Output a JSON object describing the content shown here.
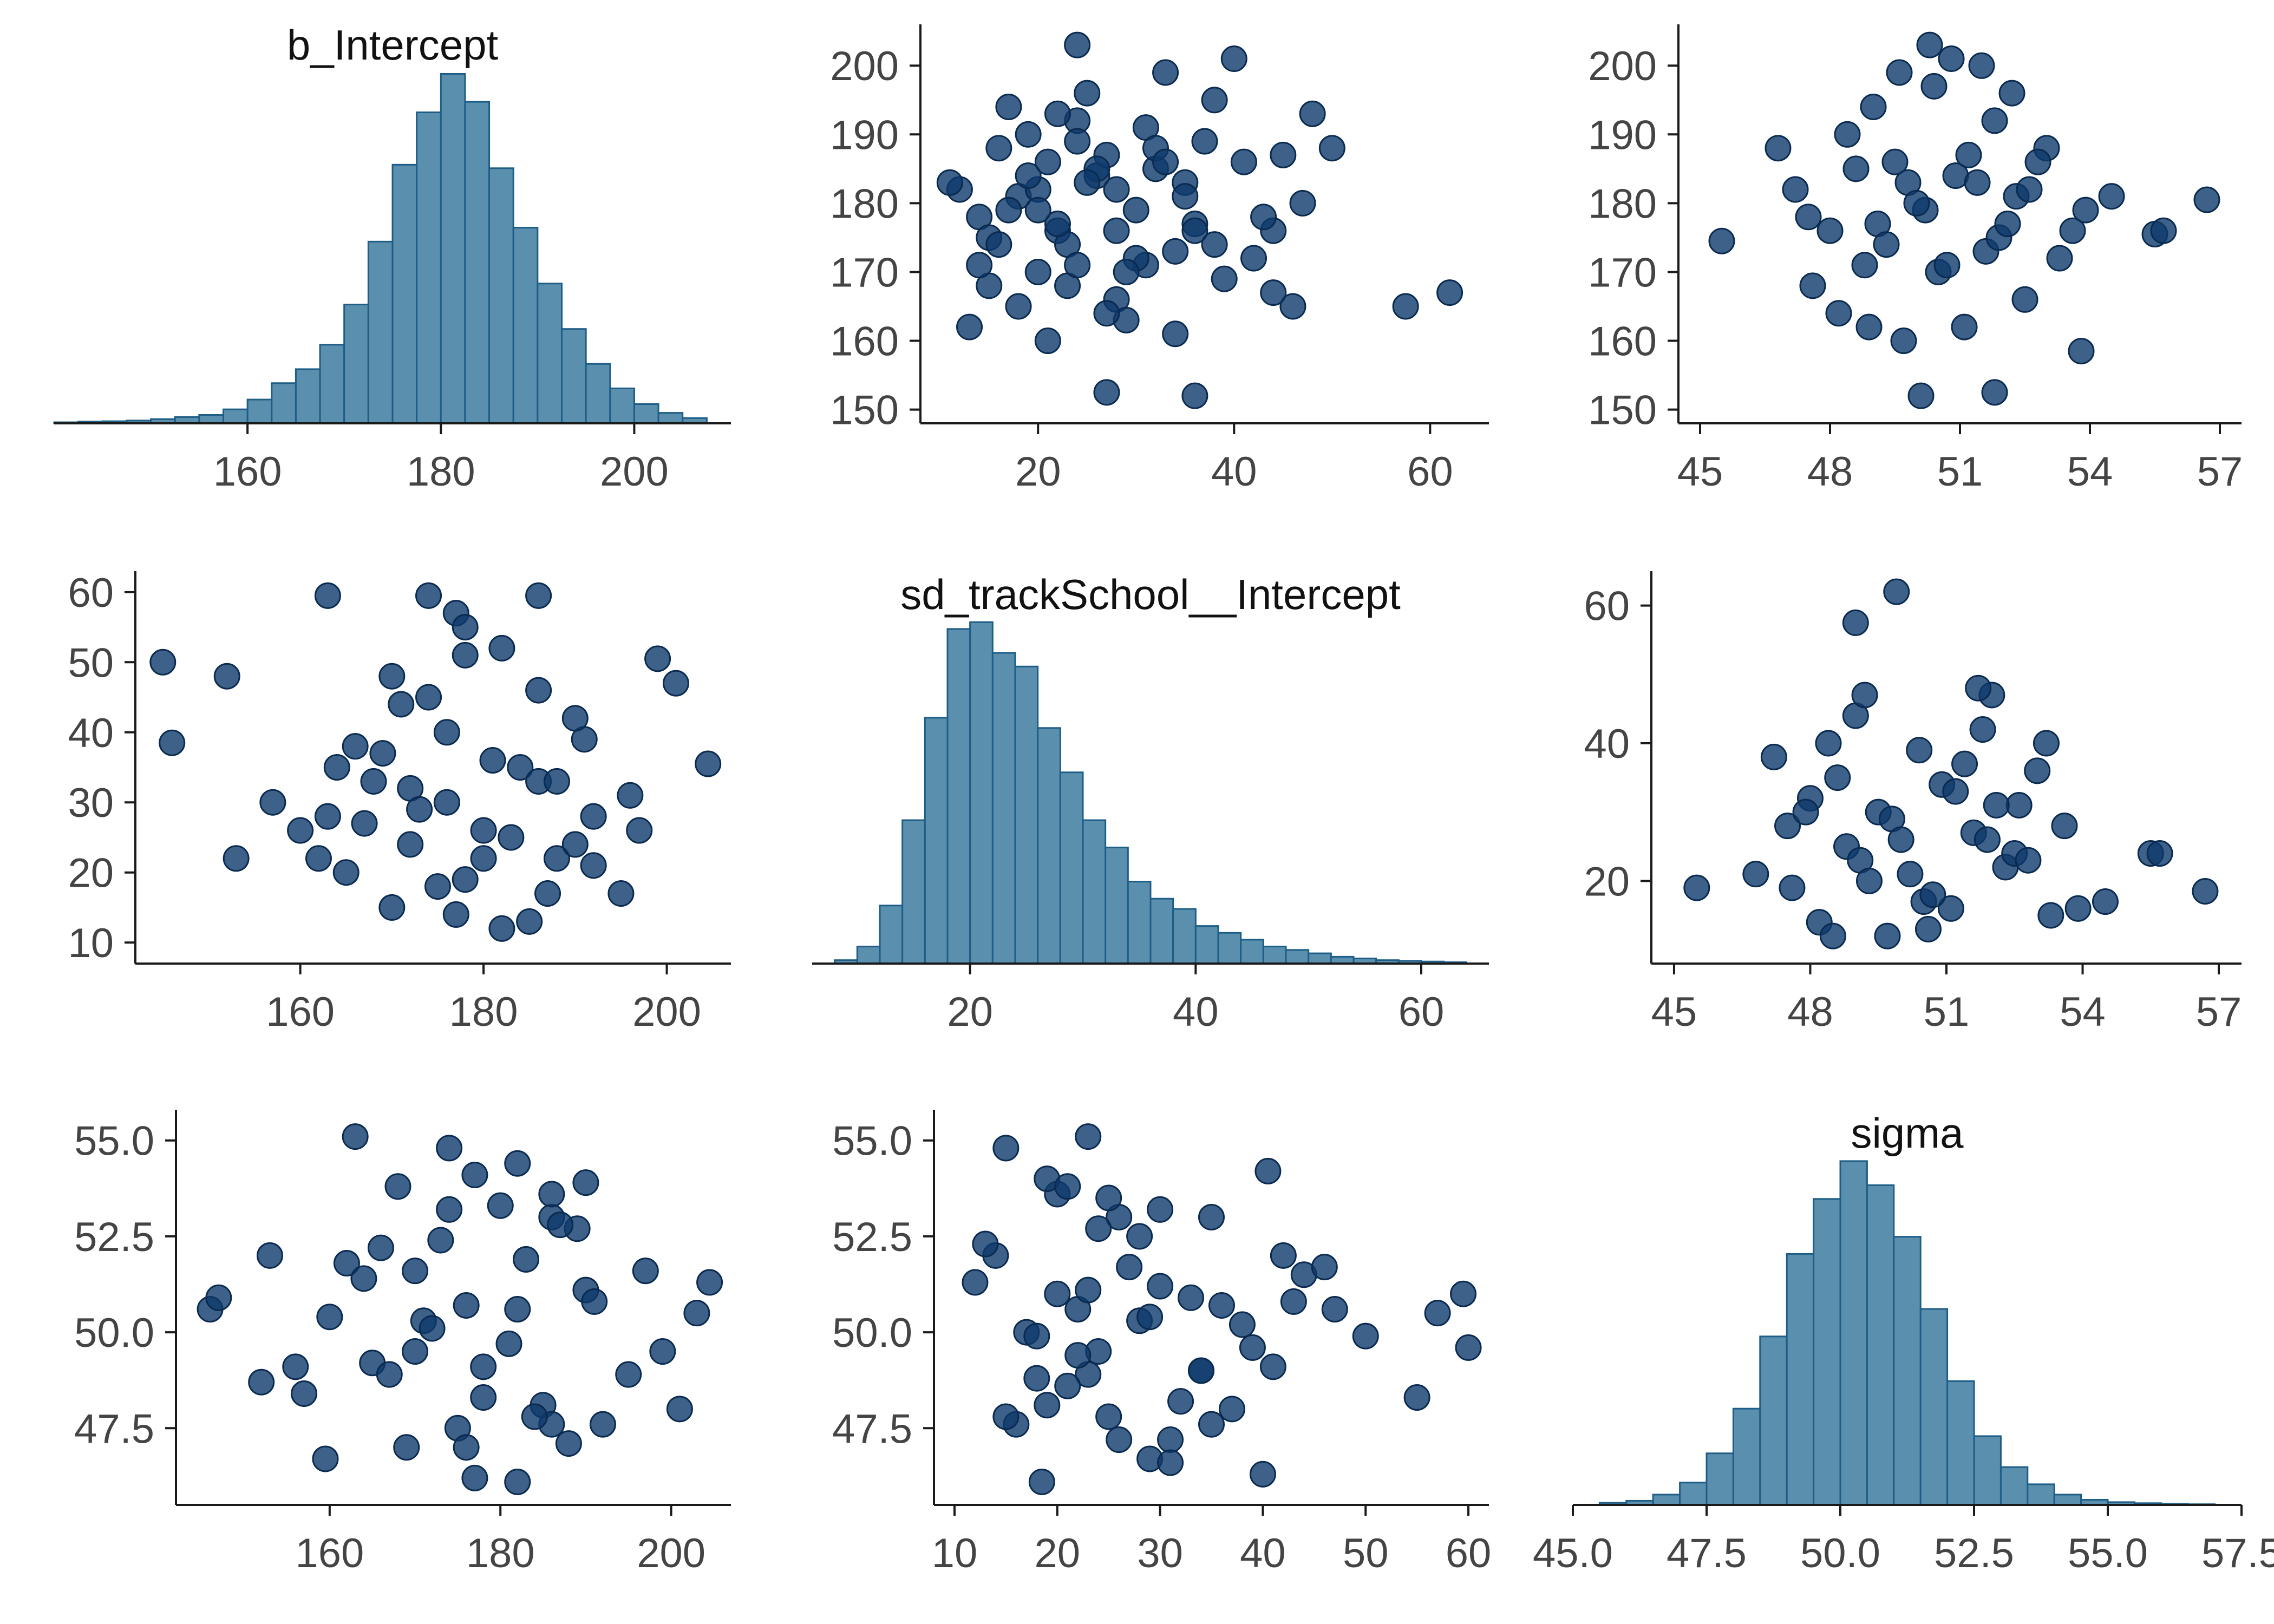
{
  "colors": {
    "bar_fill": "#5b8fae",
    "bar_edge": "#1d5d86",
    "point_fill": "#0e3a6b",
    "point_edge": "#0a2a4f",
    "axis": "#1a1a1a",
    "tick_text": "#444444"
  },
  "chart_data": [
    {
      "panel": "r0c0",
      "type": "bar",
      "title": "b_Intercept",
      "xlim": [
        140,
        210
      ],
      "ylim": [
        0,
        1
      ],
      "bin_edges": [
        140,
        142.5,
        145,
        147.5,
        150,
        152.5,
        155,
        157.5,
        160,
        162.5,
        165,
        167.5,
        170,
        172.5,
        175,
        177.5,
        180,
        182.5,
        185,
        187.5,
        190,
        192.5,
        195,
        197.5,
        200,
        202.5,
        205,
        207.5
      ],
      "values": [
        0.003,
        0.005,
        0.006,
        0.008,
        0.012,
        0.018,
        0.024,
        0.04,
        0.068,
        0.115,
        0.155,
        0.225,
        0.34,
        0.52,
        0.74,
        0.89,
        1.0,
        0.92,
        0.73,
        0.56,
        0.4,
        0.27,
        0.17,
        0.1,
        0.055,
        0.03,
        0.015
      ],
      "xticks": [
        160,
        180,
        200
      ],
      "xticklabels": [
        "160",
        "180",
        "200"
      ]
    },
    {
      "panel": "r0c1",
      "type": "scatter",
      "title": "",
      "xlim": [
        8,
        66
      ],
      "ylim": [
        148,
        206
      ],
      "xticks": [
        20,
        40,
        60
      ],
      "xticklabels": [
        "20",
        "40",
        "60"
      ],
      "yticks": [
        150,
        160,
        170,
        180,
        190,
        200
      ],
      "yticklabels": [
        "150",
        "160",
        "170",
        "180",
        "190",
        "200"
      ],
      "x": [
        14,
        18,
        22,
        26,
        30,
        34,
        16,
        20,
        24,
        28,
        32,
        36,
        12,
        15,
        19,
        23,
        27,
        31,
        35,
        38,
        41,
        44,
        47,
        50,
        57.5,
        62,
        27,
        36,
        24,
        40,
        45,
        48,
        13,
        17,
        21,
        25,
        29,
        33,
        37,
        42,
        20,
        22,
        26,
        30,
        18,
        24,
        28,
        15,
        19,
        23,
        35,
        39,
        43,
        46,
        31,
        34,
        21,
        25,
        29,
        16,
        20,
        24,
        28,
        32,
        36,
        11,
        14,
        17,
        22,
        27,
        33,
        38,
        44
      ],
      "y": [
        178,
        181,
        176,
        184,
        179,
        173,
        188,
        170,
        192,
        166,
        185,
        177,
        182,
        168,
        190,
        174,
        187,
        171,
        183,
        195,
        186,
        176,
        180,
        188,
        165,
        167,
        152.5,
        152,
        203,
        201,
        187,
        193,
        162,
        194,
        160,
        196,
        163,
        199,
        189,
        172,
        182,
        177,
        185,
        172,
        165,
        189,
        176,
        175,
        184,
        168,
        181,
        169,
        178,
        165,
        191,
        161,
        186,
        183,
        170,
        174,
        179,
        171,
        182,
        188,
        176,
        183,
        171,
        179,
        193,
        164,
        186,
        174,
        167
      ]
    },
    {
      "panel": "r0c2",
      "type": "scatter",
      "title": "",
      "xlim": [
        44.5,
        57.5
      ],
      "ylim": [
        148,
        206
      ],
      "xticks": [
        45,
        48,
        51,
        54,
        57
      ],
      "xticklabels": [
        "45",
        "48",
        "51",
        "54",
        "57"
      ],
      "yticks": [
        150,
        160,
        170,
        180,
        190,
        200
      ],
      "yticklabels": [
        "150",
        "160",
        "170",
        "180",
        "190",
        "200"
      ],
      "x": [
        45.5,
        56.7,
        55.5,
        55.7,
        50.1,
        51.8,
        53.8,
        47.2,
        48.0,
        48.8,
        49.5,
        50.2,
        50.9,
        51.6,
        52.3,
        53.0,
        53.6,
        47.6,
        48.4,
        49.1,
        49.8,
        50.5,
        51.2,
        51.9,
        52.6,
        53.3,
        48.2,
        49.0,
        49.7,
        50.4,
        51.1,
        51.8,
        52.5,
        46.8,
        47.5,
        48.6,
        49.3,
        50.0,
        50.7,
        51.4,
        52.1,
        52.8,
        53.9,
        54.5,
        50.3,
        50.8,
        49.6,
        51.5,
        48.9,
        52.2
      ],
      "y": [
        174.5,
        180.5,
        175.5,
        176,
        152,
        152.5,
        158.5,
        182,
        176,
        171,
        186,
        179,
        184,
        173,
        181,
        188,
        176,
        168,
        190,
        177,
        183,
        170,
        187,
        175,
        182,
        172,
        164,
        194,
        160,
        197,
        162,
        192,
        166,
        188,
        178,
        185,
        174,
        180,
        171,
        183,
        177,
        186,
        179,
        181,
        203,
        201,
        199,
        200,
        162,
        196
      ]
    },
    {
      "panel": "r1c0",
      "type": "scatter",
      "title": "",
      "xlim": [
        142,
        207
      ],
      "ylim": [
        7,
        63
      ],
      "xticks": [
        160,
        180,
        200
      ],
      "xticklabels": [
        "160",
        "180",
        "200"
      ],
      "yticks": [
        10,
        20,
        30,
        40,
        50,
        60
      ],
      "yticklabels": [
        "10",
        "20",
        "30",
        "40",
        "50",
        "60"
      ],
      "x": [
        145,
        146,
        152,
        153,
        163,
        174,
        186,
        177,
        178,
        199,
        201,
        204.5,
        163,
        168,
        172,
        176,
        180,
        184,
        188,
        192,
        196,
        160,
        165,
        170,
        175,
        180,
        185,
        190,
        195,
        166,
        171,
        176,
        181,
        186,
        191,
        157,
        162,
        167,
        172,
        177,
        182,
        187,
        192,
        197,
        170,
        174,
        178,
        182,
        186,
        190,
        164,
        169,
        173,
        178,
        183,
        188
      ],
      "y": [
        50,
        38.5,
        48,
        22,
        59.5,
        59.5,
        59.5,
        57,
        55,
        50.5,
        47,
        35.5,
        28,
        33,
        24,
        30,
        26,
        35,
        22,
        28,
        31,
        26,
        20,
        15,
        18,
        22,
        13,
        24,
        17,
        38,
        44,
        40,
        36,
        33,
        39,
        30,
        22,
        27,
        32,
        14,
        12,
        17,
        21,
        26,
        48,
        45,
        51,
        52,
        46,
        42,
        35,
        37,
        29,
        19,
        25,
        33
      ]
    },
    {
      "panel": "r1c1",
      "type": "bar",
      "title": "sd_trackSchool__Intercept",
      "xlim": [
        6,
        66
      ],
      "ylim": [
        0,
        1
      ],
      "bin_edges": [
        8,
        10,
        12,
        14,
        16,
        18,
        20,
        22,
        24,
        26,
        28,
        30,
        32,
        34,
        36,
        38,
        40,
        42,
        44,
        46,
        48,
        50,
        52,
        54,
        56,
        58,
        60,
        62,
        64
      ],
      "values": [
        0.01,
        0.05,
        0.17,
        0.42,
        0.72,
        0.98,
        1.0,
        0.91,
        0.87,
        0.69,
        0.56,
        0.42,
        0.34,
        0.24,
        0.19,
        0.16,
        0.11,
        0.09,
        0.07,
        0.05,
        0.04,
        0.03,
        0.02,
        0.015,
        0.01,
        0.008,
        0.006,
        0.004
      ],
      "xticks": [
        20,
        40,
        60
      ],
      "xticklabels": [
        "20",
        "40",
        "60"
      ]
    },
    {
      "panel": "r1c2",
      "type": "scatter",
      "title": "",
      "xlim": [
        44.5,
        57.5
      ],
      "ylim": [
        8,
        65
      ],
      "xticks": [
        45,
        48,
        51,
        54,
        57
      ],
      "xticklabels": [
        "45",
        "48",
        "51",
        "54",
        "57"
      ],
      "yticks": [
        20,
        40,
        60
      ],
      "yticklabels": [
        "20",
        "40",
        "60"
      ],
      "x": [
        45.5,
        56.7,
        55.5,
        55.7,
        49.0,
        49.9,
        52.0,
        47.2,
        48.0,
        48.8,
        49.5,
        50.2,
        50.9,
        51.6,
        52.3,
        53.0,
        53.6,
        47.6,
        48.4,
        49.1,
        49.8,
        50.5,
        51.2,
        51.9,
        52.6,
        53.3,
        48.2,
        49.0,
        49.7,
        50.4,
        51.1,
        51.8,
        52.5,
        46.8,
        47.5,
        48.6,
        49.3,
        50.0,
        50.7,
        51.4,
        52.1,
        52.8,
        53.9,
        54.5,
        49.2,
        50.6,
        51.7,
        48.5,
        53.2,
        47.9
      ],
      "y": [
        19,
        18.5,
        24,
        24,
        57.5,
        62,
        47,
        38,
        32,
        25,
        30,
        21,
        34,
        27,
        22,
        36,
        28,
        19,
        40,
        23,
        29,
        17,
        33,
        26,
        31,
        15,
        14,
        44,
        12,
        39,
        16,
        42,
        24,
        21,
        28,
        35,
        20,
        26,
        18,
        37,
        31,
        23,
        16,
        17,
        47,
        13,
        48,
        12,
        40,
        30
      ]
    },
    {
      "panel": "r2c0",
      "type": "scatter",
      "title": "",
      "xlim": [
        142,
        207
      ],
      "ylim": [
        45.5,
        55.8
      ],
      "xticks": [
        160,
        180,
        200
      ],
      "xticklabels": [
        "160",
        "180",
        "200"
      ],
      "yticks": [
        47.5,
        50.0,
        52.5,
        55.0
      ],
      "yticklabels": [
        "47.5",
        "50.0",
        "52.5",
        "55.0"
      ],
      "x": [
        146,
        147,
        152,
        153,
        156,
        159.5,
        163,
        174,
        177,
        182,
        186,
        189,
        199,
        201,
        204.5,
        203,
        160,
        165,
        170,
        175,
        180,
        185,
        190,
        195,
        166,
        171,
        176,
        181,
        186,
        191,
        157,
        162,
        167,
        172,
        177,
        182,
        187,
        192,
        197,
        170,
        174,
        178,
        182,
        186,
        190,
        164,
        169,
        173,
        178,
        183,
        188,
        168,
        176,
        184
      ],
      "y": [
        50.6,
        50.9,
        48.7,
        52,
        49.1,
        46.7,
        55.1,
        54.8,
        54.1,
        54.4,
        53,
        52.7,
        49.5,
        48,
        51.3,
        50.5,
        50.4,
        49.2,
        51.6,
        47.5,
        53.3,
        48.1,
        51.1,
        48.9,
        52.2,
        50.3,
        47,
        49.7,
        53.6,
        50.8,
        48.4,
        51.8,
        48.9,
        50.1,
        46.2,
        46.1,
        52.8,
        47.6,
        51.6,
        49.5,
        53.2,
        48.3,
        50.6,
        47.6,
        53.9,
        51.4,
        47,
        52.4,
        49.1,
        51.9,
        47.1,
        53.8,
        50.7,
        47.8
      ]
    },
    {
      "panel": "r2c1",
      "type": "scatter",
      "title": "",
      "xlim": [
        8,
        62
      ],
      "ylim": [
        45.5,
        55.8
      ],
      "xticks": [
        10,
        20,
        30,
        40,
        50,
        60
      ],
      "xticklabels": [
        "10",
        "20",
        "30",
        "40",
        "50",
        "60"
      ],
      "yticks": [
        47.5,
        50.0,
        52.5,
        55.0
      ],
      "yticklabels": [
        "47.5",
        "50.0",
        "52.5",
        "55.0"
      ],
      "x": [
        14,
        18,
        22,
        26,
        30,
        34,
        16,
        20,
        24,
        28,
        32,
        36,
        12,
        15,
        19,
        23,
        27,
        31,
        35,
        38,
        41,
        44,
        47,
        50,
        55,
        60,
        57,
        59.5,
        40.5,
        40,
        23,
        18.5,
        13,
        17,
        21,
        25,
        29,
        33,
        37,
        42,
        20,
        22,
        26,
        30,
        18,
        24,
        28,
        15,
        19,
        23,
        35,
        39,
        43,
        46,
        31,
        34,
        21,
        25,
        29
      ],
      "y": [
        52,
        48.8,
        50.6,
        53,
        51.2,
        49,
        47.6,
        53.6,
        49.5,
        52.5,
        48.2,
        50.7,
        51.3,
        47.8,
        54,
        48.9,
        51.7,
        47.2,
        53,
        50.2,
        49.1,
        51.5,
        50.6,
        49.9,
        48.3,
        49.6,
        50.5,
        51,
        54.2,
        46.3,
        55.1,
        46.1,
        52.3,
        50,
        48.6,
        53.5,
        46.7,
        50.9,
        48,
        52,
        51,
        49.4,
        47.2,
        53.2,
        49.9,
        52.7,
        50.3,
        54.8,
        48.1,
        51.1,
        47.6,
        49.6,
        50.8,
        51.7,
        46.6,
        49,
        53.8,
        47.8,
        50.4
      ]
    },
    {
      "panel": "r2c2",
      "type": "bar",
      "title": "sigma",
      "xlim": [
        45,
        57.5
      ],
      "ylim": [
        0,
        1
      ],
      "bin_edges": [
        45.5,
        46.0,
        46.5,
        47.0,
        47.5,
        48.0,
        48.5,
        49.0,
        49.5,
        50.0,
        50.5,
        51.0,
        51.5,
        52.0,
        52.5,
        53.0,
        53.5,
        54.0,
        54.5,
        55.0,
        55.5,
        56.0,
        56.5,
        57.0
      ],
      "values": [
        0.006,
        0.012,
        0.03,
        0.065,
        0.15,
        0.28,
        0.49,
        0.73,
        0.89,
        1.0,
        0.93,
        0.78,
        0.57,
        0.36,
        0.2,
        0.11,
        0.06,
        0.03,
        0.015,
        0.008,
        0.005,
        0.003,
        0.002
      ],
      "xticks": [
        45.0,
        47.5,
        50.0,
        52.5,
        55.0,
        57.5
      ],
      "xticklabels": [
        "45.0",
        "47.5",
        "50.0",
        "52.5",
        "55.0",
        "57.5"
      ]
    }
  ]
}
